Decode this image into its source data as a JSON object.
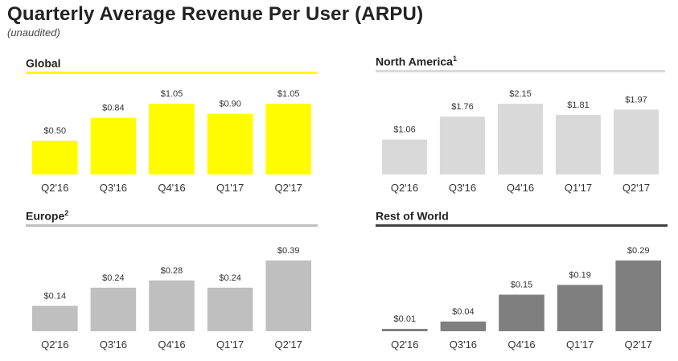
{
  "page": {
    "title": "Quarterly Average Revenue Per User (ARPU)",
    "subtitle": "(unaudited)"
  },
  "chart_data": [
    {
      "type": "bar",
      "title": "Global",
      "footnote": "",
      "color": "#FFFC00",
      "rule_color": "#FFFC00",
      "categories": [
        "Q2'16",
        "Q3'16",
        "Q4'16",
        "Q1'17",
        "Q2'17"
      ],
      "values": [
        0.5,
        0.84,
        1.05,
        0.9,
        1.05
      ],
      "data_labels": [
        "$0.50",
        "$0.84",
        "$1.05",
        "$0.90",
        "$1.05"
      ],
      "xlabel": "",
      "ylabel": "",
      "ylim": [
        0,
        1.05
      ]
    },
    {
      "type": "bar",
      "title": "North America",
      "footnote": "1",
      "color": "#D9D9D9",
      "rule_color": "#D9D9D9",
      "categories": [
        "Q2'16",
        "Q3'16",
        "Q4'16",
        "Q1'17",
        "Q2'17"
      ],
      "values": [
        1.06,
        1.76,
        2.15,
        1.81,
        1.97
      ],
      "data_labels": [
        "$1.06",
        "$1.76",
        "$2.15",
        "$1.81",
        "$1.97"
      ],
      "xlabel": "",
      "ylabel": "",
      "ylim": [
        0,
        2.15
      ]
    },
    {
      "type": "bar",
      "title": "Europe",
      "footnote": "2",
      "color": "#BFBFBF",
      "rule_color": "#BFBFBF",
      "categories": [
        "Q2'16",
        "Q3'16",
        "Q4'16",
        "Q1'17",
        "Q2'17"
      ],
      "values": [
        0.14,
        0.24,
        0.28,
        0.24,
        0.39
      ],
      "data_labels": [
        "$0.14",
        "$0.24",
        "$0.28",
        "$0.24",
        "$0.39"
      ],
      "xlabel": "",
      "ylabel": "",
      "ylim": [
        0,
        0.39
      ]
    },
    {
      "type": "bar",
      "title": "Rest of World",
      "footnote": "",
      "color": "#7F7F7F",
      "rule_color": "#404040",
      "categories": [
        "Q2'16",
        "Q3'16",
        "Q4'16",
        "Q1'17",
        "Q2'17"
      ],
      "values": [
        0.01,
        0.04,
        0.15,
        0.19,
        0.29
      ],
      "data_labels": [
        "$0.01",
        "$0.04",
        "$0.15",
        "$0.19",
        "$0.29"
      ],
      "xlabel": "",
      "ylabel": "",
      "ylim": [
        0,
        0.29
      ]
    }
  ]
}
